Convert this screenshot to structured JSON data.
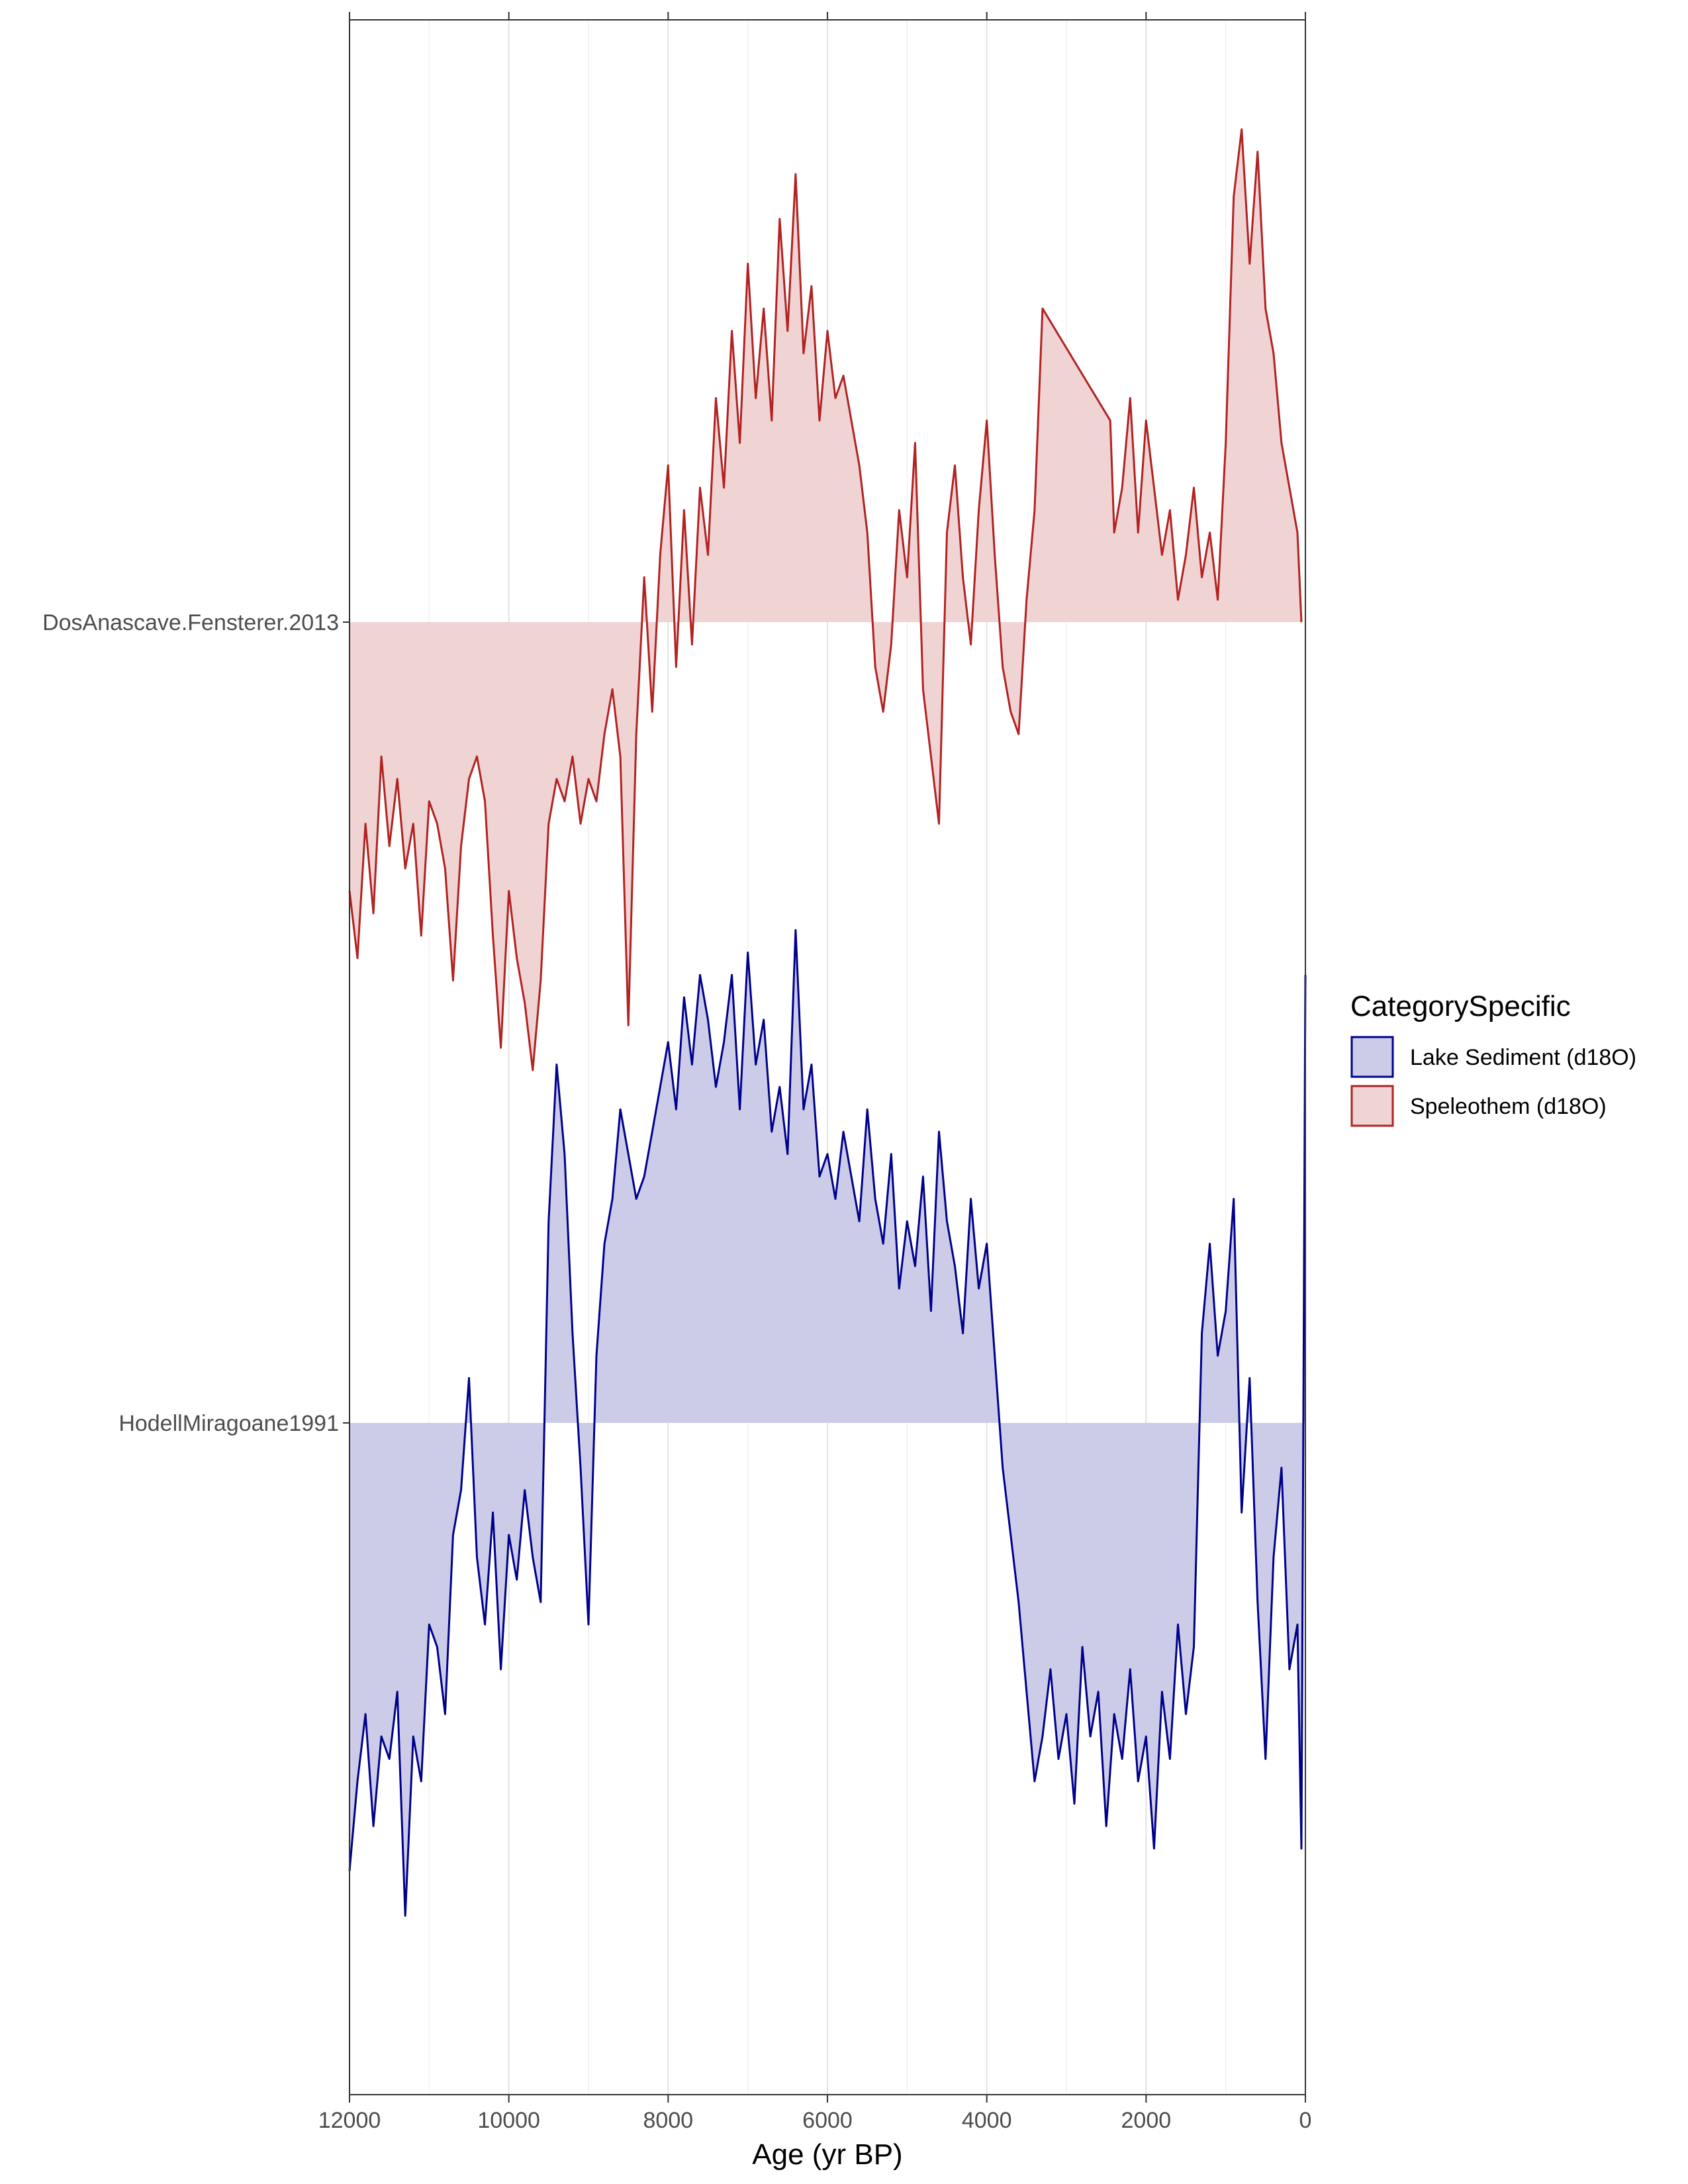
{
  "chart_data": {
    "type": "area",
    "title": "",
    "xlabel": "Age (yr BP)",
    "ylabel": "",
    "xlim": [
      12000,
      0
    ],
    "x_reversed": true,
    "x_ticks": [
      12000,
      10000,
      8000,
      6000,
      4000,
      2000,
      0
    ],
    "x_tick_labels": [
      "12000",
      "10000",
      "8000",
      "6000",
      "4000",
      "2000",
      "0"
    ],
    "grid": true,
    "legend": {
      "title": "CategorySpecific",
      "placement": "right",
      "entries": [
        {
          "label": "Lake Sediment (d18O)",
          "color": "#00008b",
          "fill": "#cccce8"
        },
        {
          "label": "Speleothem (d18O)",
          "color": "#b22222",
          "fill": "#f0d3d3"
        }
      ]
    },
    "series": [
      {
        "name": "DosAnascave.Fensterer.2013",
        "category": "Speleothem (d18O)",
        "color": "#b22222",
        "fill": "#f0d3d3",
        "anomaly_range": [
          -2.6,
          2.6
        ],
        "x": [
          12000,
          11900,
          11800,
          11700,
          11600,
          11500,
          11400,
          11300,
          11200,
          11100,
          11000,
          10900,
          10800,
          10700,
          10600,
          10500,
          10400,
          10300,
          10200,
          10100,
          10000,
          9900,
          9800,
          9700,
          9600,
          9500,
          9400,
          9300,
          9200,
          9100,
          9000,
          8900,
          8800,
          8700,
          8600,
          8500,
          8400,
          8300,
          8200,
          8100,
          8000,
          7900,
          7800,
          7700,
          7600,
          7500,
          7400,
          7300,
          7200,
          7100,
          7000,
          6900,
          6800,
          6700,
          6600,
          6500,
          6400,
          6300,
          6200,
          6100,
          6000,
          5900,
          5800,
          5700,
          5600,
          5500,
          5400,
          5300,
          5200,
          5100,
          5000,
          4900,
          4800,
          4700,
          4600,
          4500,
          4400,
          4300,
          4200,
          4100,
          4000,
          3900,
          3800,
          3700,
          3600,
          3500,
          3400,
          3300,
          2450,
          2400,
          2300,
          2200,
          2100,
          2000,
          1900,
          1800,
          1700,
          1600,
          1500,
          1400,
          1300,
          1200,
          1100,
          1000,
          900,
          800,
          700,
          600,
          500,
          400,
          300,
          200,
          100,
          50
        ],
        "y": [
          -1.2,
          -1.5,
          -0.9,
          -1.3,
          -0.6,
          -1.0,
          -0.7,
          -1.1,
          -0.9,
          -1.4,
          -0.8,
          -0.9,
          -1.1,
          -1.6,
          -1.0,
          -0.7,
          -0.6,
          -0.8,
          -1.4,
          -1.9,
          -1.2,
          -1.5,
          -1.7,
          -2.0,
          -1.6,
          -0.9,
          -0.7,
          -0.8,
          -0.6,
          -0.9,
          -0.7,
          -0.8,
          -0.5,
          -0.3,
          -0.6,
          -1.8,
          -0.5,
          0.2,
          -0.4,
          0.3,
          0.7,
          -0.2,
          0.5,
          -0.1,
          0.6,
          0.3,
          1.0,
          0.6,
          1.3,
          0.8,
          1.6,
          1.0,
          1.4,
          0.9,
          1.8,
          1.3,
          2.0,
          1.2,
          1.5,
          0.9,
          1.3,
          1.0,
          1.1,
          0.9,
          0.7,
          0.4,
          -0.2,
          -0.4,
          -0.1,
          0.5,
          0.2,
          0.8,
          -0.3,
          -0.6,
          -0.9,
          0.4,
          0.7,
          0.2,
          -0.1,
          0.5,
          0.9,
          0.3,
          -0.2,
          -0.4,
          -0.5,
          0.1,
          0.5,
          1.4,
          0.9,
          0.4,
          0.6,
          1.0,
          0.4,
          0.9,
          0.6,
          0.3,
          0.5,
          0.1,
          0.3,
          0.6,
          0.2,
          0.4,
          0.1,
          0.8,
          1.9,
          2.2,
          1.6,
          2.1,
          1.4,
          1.2,
          0.8,
          0.6,
          0.4,
          0.0
        ]
      },
      {
        "name": "HodellMiragoane1991",
        "category": "Lake Sediment (d18O)",
        "color": "#00008b",
        "fill": "#cccce8",
        "anomaly_range": [
          -2.6,
          2.6
        ],
        "x": [
          12000,
          11900,
          11800,
          11700,
          11600,
          11500,
          11400,
          11300,
          11200,
          11100,
          11000,
          10900,
          10800,
          10700,
          10600,
          10500,
          10400,
          10300,
          10200,
          10100,
          10000,
          9900,
          9800,
          9700,
          9600,
          9500,
          9400,
          9300,
          9200,
          9100,
          9000,
          8900,
          8800,
          8700,
          8600,
          8500,
          8400,
          8300,
          8200,
          8100,
          8000,
          7900,
          7800,
          7700,
          7600,
          7500,
          7400,
          7300,
          7200,
          7100,
          7000,
          6900,
          6800,
          6700,
          6600,
          6500,
          6400,
          6300,
          6200,
          6100,
          6000,
          5900,
          5800,
          5700,
          5600,
          5500,
          5400,
          5300,
          5200,
          5100,
          5000,
          4900,
          4800,
          4700,
          4600,
          4500,
          4400,
          4300,
          4200,
          4100,
          4000,
          3900,
          3800,
          3700,
          3600,
          3500,
          3400,
          3300,
          3200,
          3100,
          3000,
          2900,
          2800,
          2700,
          2600,
          2500,
          2400,
          2300,
          2200,
          2100,
          2000,
          1900,
          1800,
          1700,
          1600,
          1500,
          1400,
          1300,
          1200,
          1100,
          1000,
          900,
          800,
          700,
          600,
          500,
          400,
          300,
          200,
          100,
          50,
          0
        ],
        "y": [
          -2.0,
          -1.6,
          -1.3,
          -1.8,
          -1.4,
          -1.5,
          -1.2,
          -2.2,
          -1.4,
          -1.6,
          -0.9,
          -1.0,
          -1.3,
          -0.5,
          -0.3,
          0.2,
          -0.6,
          -0.9,
          -0.4,
          -1.1,
          -0.5,
          -0.7,
          -0.3,
          -0.6,
          -0.8,
          0.9,
          1.6,
          1.2,
          0.4,
          -0.2,
          -0.9,
          0.3,
          0.8,
          1.0,
          1.4,
          1.2,
          1.0,
          1.1,
          1.3,
          1.5,
          1.7,
          1.4,
          1.9,
          1.6,
          2.0,
          1.8,
          1.5,
          1.7,
          2.0,
          1.4,
          2.1,
          1.6,
          1.8,
          1.3,
          1.5,
          1.2,
          2.2,
          1.4,
          1.6,
          1.1,
          1.2,
          1.0,
          1.3,
          1.1,
          0.9,
          1.4,
          1.0,
          0.8,
          1.2,
          0.6,
          0.9,
          0.7,
          1.1,
          0.5,
          1.3,
          0.9,
          0.7,
          0.4,
          1.0,
          0.6,
          0.8,
          0.3,
          -0.2,
          -0.5,
          -0.8,
          -1.2,
          -1.6,
          -1.4,
          -1.1,
          -1.5,
          -1.3,
          -1.7,
          -1.0,
          -1.4,
          -1.2,
          -1.8,
          -1.3,
          -1.5,
          -1.1,
          -1.6,
          -1.4,
          -1.9,
          -1.2,
          -1.5,
          -0.9,
          -1.3,
          -1.0,
          0.4,
          0.8,
          0.3,
          0.5,
          1.0,
          -0.4,
          0.2,
          -0.8,
          -1.5,
          -0.6,
          -0.2,
          -1.1,
          -0.9,
          -1.9,
          2.0
        ]
      }
    ]
  }
}
